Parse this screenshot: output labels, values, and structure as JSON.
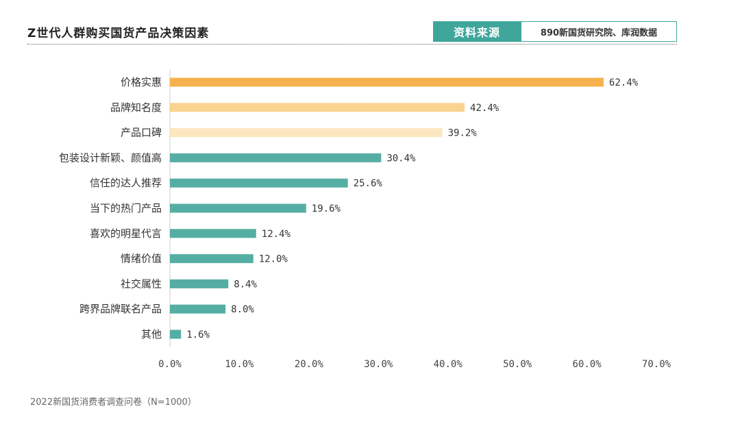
{
  "header": {
    "title": "Z世代人群购买国货产品决策因素",
    "source_label": "资料来源",
    "source_value": "890新国货研究院、库润数据"
  },
  "footnote": "2022新国货消费者调查问卷（N=1000）",
  "chart_data": {
    "type": "bar",
    "orientation": "horizontal",
    "categories": [
      "价格实惠",
      "品牌知名度",
      "产品口碑",
      "包装设计新颖、颜值高",
      "信任的达人推荐",
      "当下的热门产品",
      "喜欢的明星代言",
      "情绪价值",
      "社交属性",
      "跨界品牌联名产品",
      "其他"
    ],
    "values": [
      62.4,
      42.4,
      39.2,
      30.4,
      25.6,
      19.6,
      12.4,
      12.0,
      8.4,
      8.0,
      1.6
    ],
    "value_labels": [
      "62.4%",
      "42.4%",
      "39.2%",
      "30.4%",
      "25.6%",
      "19.6%",
      "12.4%",
      "12.0%",
      "8.4%",
      "8.0%",
      "1.6%"
    ],
    "bar_colors": [
      "#f6b24e",
      "#f9d38f",
      "#fbe6c0",
      "#55aea3",
      "#55aea3",
      "#55aea3",
      "#55aea3",
      "#55aea3",
      "#55aea3",
      "#55aea3",
      "#55aea3"
    ],
    "x_ticks": [
      "0.0%",
      "10.0%",
      "20.0%",
      "30.0%",
      "40.0%",
      "50.0%",
      "60.0%",
      "70.0%"
    ],
    "xlim": [
      0,
      70
    ],
    "grid": false,
    "title": "Z世代人群购买国货产品决策因素",
    "xlabel": "",
    "ylabel": ""
  }
}
